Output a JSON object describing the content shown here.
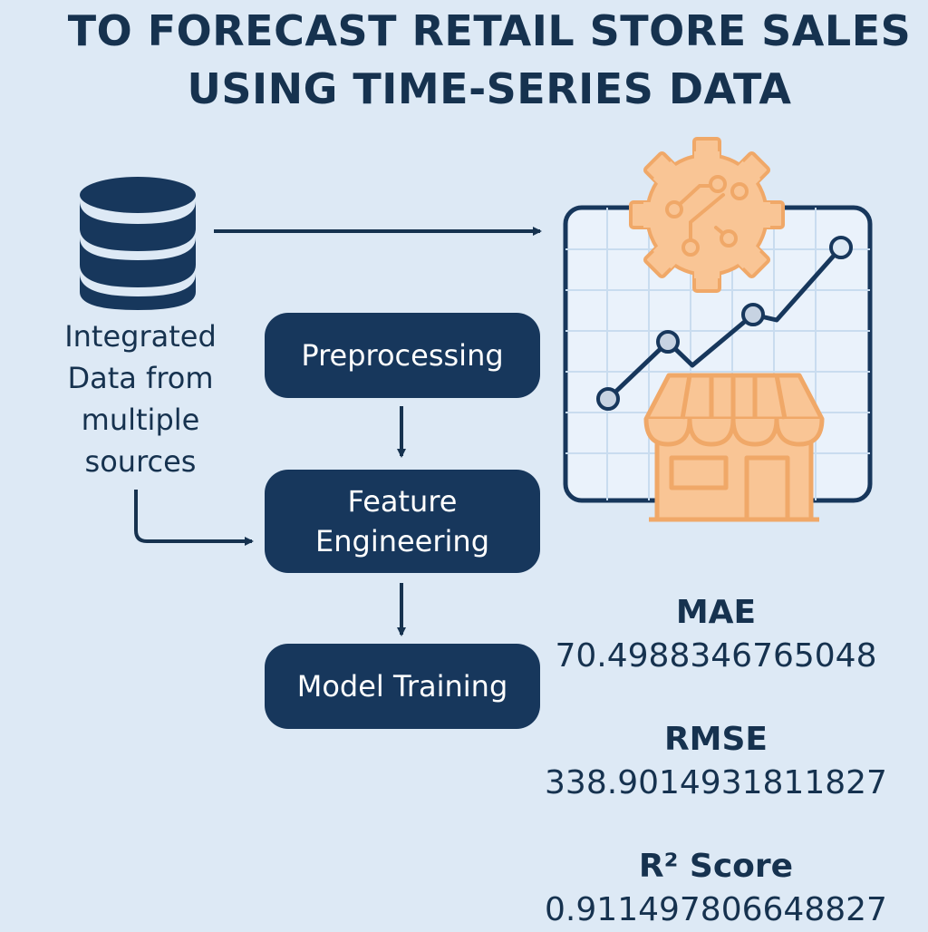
{
  "title": {
    "line1": "TO FORECAST RETAIL STORE SALES",
    "line2": "USING TIME-SERIES DATA"
  },
  "source": {
    "icon": "database-icon",
    "label_lines": [
      "Integrated",
      "Data from",
      "multiple",
      "sources"
    ]
  },
  "pipeline": {
    "steps": [
      {
        "label_lines": [
          "Preprocessing"
        ]
      },
      {
        "label_lines": [
          "Feature",
          "Engineering"
        ]
      },
      {
        "label_lines": [
          "Model Training"
        ]
      }
    ]
  },
  "illustration": {
    "icons": [
      "gear-circuit-icon",
      "line-chart-icon",
      "storefront-icon"
    ]
  },
  "metrics": [
    {
      "name": "MAE",
      "value": "70.4988346765048"
    },
    {
      "name": "RMSE",
      "value": "338.9014931811827"
    },
    {
      "name": "R² Score",
      "value": "0.911497806648827"
    }
  ],
  "colors": {
    "navy": "#17375c",
    "background": "#dde9f5",
    "orange": "#f0a868",
    "orange_fill": "#f9c595",
    "chart_bg": "#eaf2fb"
  }
}
